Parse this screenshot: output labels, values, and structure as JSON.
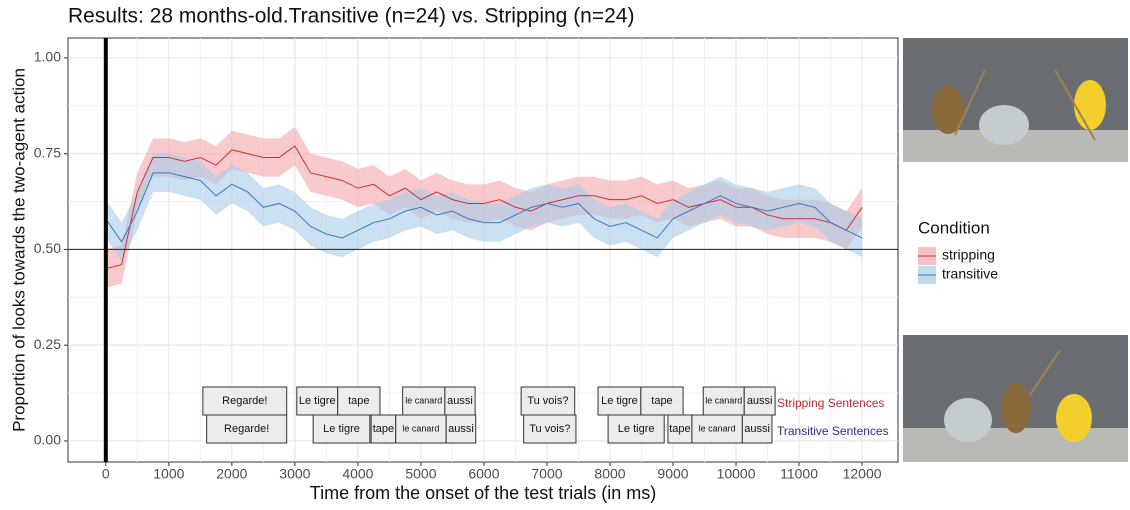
{
  "chart_data": {
    "type": "line",
    "title": "Results: 28 months-old.Transitive (n=24) vs. Stripping (n=24)",
    "x_label": "Time from the onset of the test trials (in ms)",
    "y_label": "Proportion of looks towards the two-agent action",
    "legend_title": "Condition",
    "grid": true,
    "xlim": [
      -600,
      12570
    ],
    "ylim": [
      -0.055,
      1.052
    ],
    "xticks": [
      0,
      1000,
      2000,
      3000,
      4000,
      5000,
      6000,
      7000,
      8000,
      9000,
      10000,
      11000,
      12000
    ],
    "yticks": [
      {
        "value": 0,
        "label": "0.00"
      },
      {
        "value": 0.25,
        "label": "0.25"
      },
      {
        "value": 0.5,
        "label": "0.50"
      },
      {
        "value": 0.75,
        "label": "0.75"
      },
      {
        "value": 1,
        "label": "1.00"
      }
    ],
    "hline": 0.5,
    "vline": 0,
    "x": [
      0,
      250,
      500,
      750,
      1000,
      1250,
      1500,
      1750,
      2000,
      2250,
      2500,
      2750,
      3000,
      3250,
      3500,
      3750,
      4000,
      4250,
      4500,
      4750,
      5000,
      5250,
      5500,
      5750,
      6000,
      6250,
      6500,
      6750,
      7000,
      7250,
      7500,
      7750,
      8000,
      8250,
      8500,
      8750,
      9000,
      9250,
      9500,
      9750,
      10000,
      10250,
      10500,
      10750,
      11000,
      11250,
      11500,
      11750,
      12000
    ],
    "series": [
      {
        "name": "stripping",
        "color": "#c8323c",
        "fill": "#f4a6aa",
        "ci_half_width": 0.05,
        "values": [
          0.45,
          0.46,
          0.65,
          0.74,
          0.74,
          0.73,
          0.74,
          0.72,
          0.76,
          0.75,
          0.74,
          0.74,
          0.77,
          0.7,
          0.69,
          0.68,
          0.66,
          0.67,
          0.64,
          0.66,
          0.63,
          0.65,
          0.63,
          0.62,
          0.62,
          0.63,
          0.61,
          0.6,
          0.62,
          0.63,
          0.64,
          0.64,
          0.63,
          0.63,
          0.64,
          0.62,
          0.63,
          0.61,
          0.62,
          0.63,
          0.61,
          0.61,
          0.59,
          0.58,
          0.58,
          0.58,
          0.57,
          0.55,
          0.61
        ]
      },
      {
        "name": "transitive",
        "color": "#3a78c0",
        "fill": "#a9cbe8",
        "ci_half_width": 0.05,
        "values": [
          0.58,
          0.52,
          0.6,
          0.7,
          0.7,
          0.69,
          0.68,
          0.64,
          0.67,
          0.65,
          0.61,
          0.62,
          0.6,
          0.56,
          0.54,
          0.53,
          0.55,
          0.57,
          0.58,
          0.6,
          0.61,
          0.59,
          0.6,
          0.58,
          0.57,
          0.57,
          0.59,
          0.61,
          0.62,
          0.61,
          0.62,
          0.58,
          0.56,
          0.57,
          0.55,
          0.53,
          0.58,
          0.6,
          0.62,
          0.64,
          0.62,
          0.61,
          0.6,
          0.61,
          0.62,
          0.61,
          0.57,
          0.55,
          0.53
        ]
      }
    ],
    "annotations": [
      {
        "label": "Stripping Sentences",
        "color": "#c0282e",
        "words": [
          {
            "text": "Regarde!",
            "start": 1540,
            "end": 2870
          },
          {
            "text": "Le tigre",
            "start": 3030,
            "end": 3680
          },
          {
            "text": "tape",
            "start": 3680,
            "end": 4350
          },
          {
            "text": "le canard",
            "start": 4710,
            "end": 5380
          },
          {
            "text": "aussi",
            "start": 5380,
            "end": 5860
          },
          {
            "text": "Tu vois?",
            "start": 6590,
            "end": 7440
          },
          {
            "text": "Le tigre",
            "start": 7810,
            "end": 8490
          },
          {
            "text": "tape",
            "start": 8490,
            "end": 9160
          },
          {
            "text": "le canard",
            "start": 9480,
            "end": 10130
          },
          {
            "text": "aussi",
            "start": 10130,
            "end": 10620
          }
        ]
      },
      {
        "label": "Transitive Sentences",
        "color": "#2a2a9a",
        "words": [
          {
            "text": "Regarde!",
            "start": 1600,
            "end": 2870
          },
          {
            "text": "Le tigre",
            "start": 3290,
            "end": 4190
          },
          {
            "text": "tape",
            "start": 4210,
            "end": 4600
          },
          {
            "text": "le canard",
            "start": 4600,
            "end": 5400
          },
          {
            "text": "aussi",
            "start": 5400,
            "end": 5870
          },
          {
            "text": "Tu vois?",
            "start": 6630,
            "end": 7460
          },
          {
            "text": "Le tigre",
            "start": 7970,
            "end": 8860
          },
          {
            "text": "tape",
            "start": 8920,
            "end": 9300
          },
          {
            "text": "le canard",
            "start": 9300,
            "end": 10100
          },
          {
            "text": "aussi",
            "start": 10100,
            "end": 10570
          }
        ]
      }
    ]
  }
}
